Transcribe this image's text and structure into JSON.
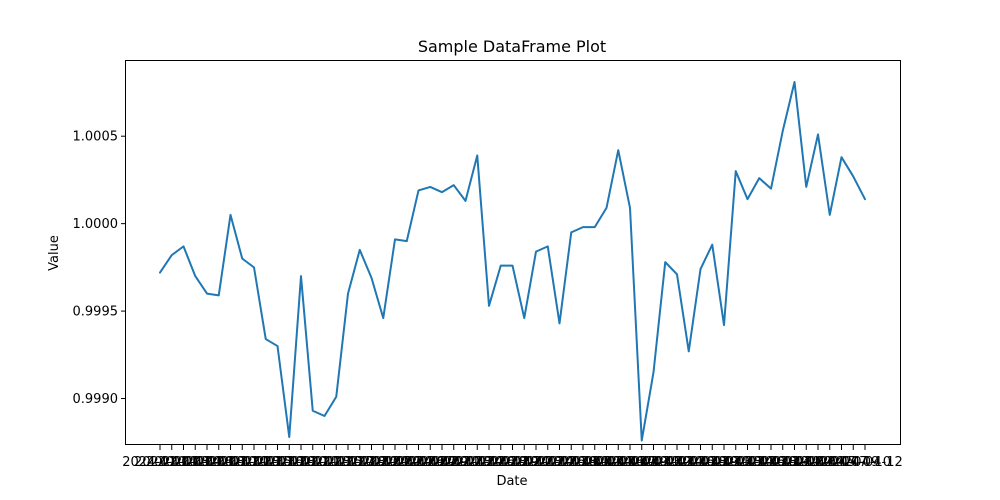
{
  "chart_data": {
    "type": "line",
    "title": "Sample DataFrame Plot",
    "xlabel": "Date",
    "ylabel": "Value",
    "x_ticks": {
      "first_label": "2024-01-01",
      "last_label": "2024-04-12"
    },
    "ylim": [
      0.99874,
      1.00093
    ],
    "yticks": [
      0.999,
      0.9995,
      1.0,
      1.0005
    ],
    "ytick_labels": [
      "0.9990",
      "0.9995",
      "1.0000",
      "1.0005"
    ],
    "grid": false,
    "colors": {
      "line": "#1f77b4",
      "axes": "#000000",
      "background": "#ffffff"
    },
    "series": [
      {
        "values": [
          0.99972,
          0.99982,
          0.99987,
          0.9997,
          0.9996,
          0.99959,
          1.00005,
          0.9998,
          0.99975,
          0.99934,
          0.9993,
          0.99878,
          0.9997,
          0.99893,
          0.9989,
          0.99901,
          0.9996,
          0.99985,
          0.99969,
          0.99946,
          0.99991,
          0.9999,
          1.00019,
          1.00021,
          1.00018,
          1.00022,
          1.00013,
          1.00039,
          0.99953,
          0.99976,
          0.99976,
          0.99946,
          0.99984,
          0.99987,
          0.99943,
          0.99995,
          0.99998,
          0.99998,
          1.00009,
          1.00042,
          1.00009,
          0.99876,
          0.99915,
          0.99978,
          0.99971,
          0.99927,
          0.99974,
          0.99988,
          0.99942,
          1.0003,
          1.00014,
          1.00026,
          1.0002,
          1.00053,
          1.00081,
          1.00021,
          1.00051,
          1.00005,
          1.00038,
          1.00027,
          1.00014
        ]
      }
    ]
  }
}
